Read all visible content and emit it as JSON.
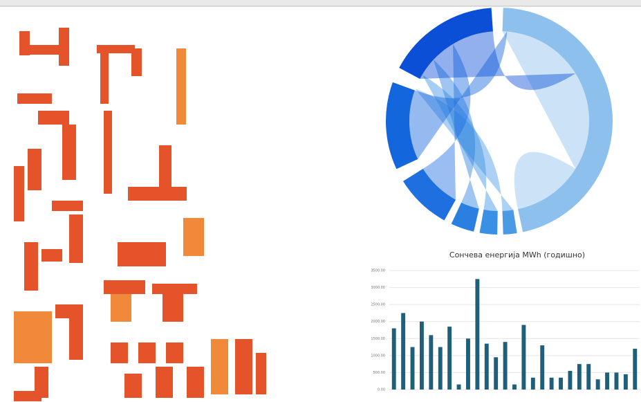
{
  "chart_data": {
    "type": "bar",
    "title": "Сончева енергија MWh (годишно)",
    "categories": [
      null,
      null,
      null,
      null,
      null,
      null,
      null,
      null,
      null,
      null,
      null,
      null,
      null,
      null,
      null,
      null,
      null,
      null,
      null,
      null,
      null,
      null,
      null,
      null,
      null,
      null,
      null
    ],
    "values": [
      1800,
      2250,
      1250,
      2000,
      1600,
      1250,
      1850,
      150,
      1500,
      3250,
      1350,
      950,
      1400,
      150,
      1900,
      350,
      1300,
      350,
      350,
      550,
      750,
      750,
      300,
      500,
      500,
      450,
      1200
    ],
    "color": "#1f5f7a",
    "ylim": [
      0,
      3500
    ],
    "yticks": [
      {
        "value": 0,
        "label": "0.00"
      },
      {
        "value": 500,
        "label": "500.00"
      },
      {
        "value": 1000,
        "label": "1000.00"
      },
      {
        "value": 1500,
        "label": "1500.00"
      },
      {
        "value": 2000,
        "label": "2000.00"
      },
      {
        "value": 2500,
        "label": "2500.00"
      },
      {
        "value": 3000,
        "label": "3000.00"
      },
      {
        "value": 3500,
        "label": "3500.00"
      }
    ],
    "grid": true
  }
}
